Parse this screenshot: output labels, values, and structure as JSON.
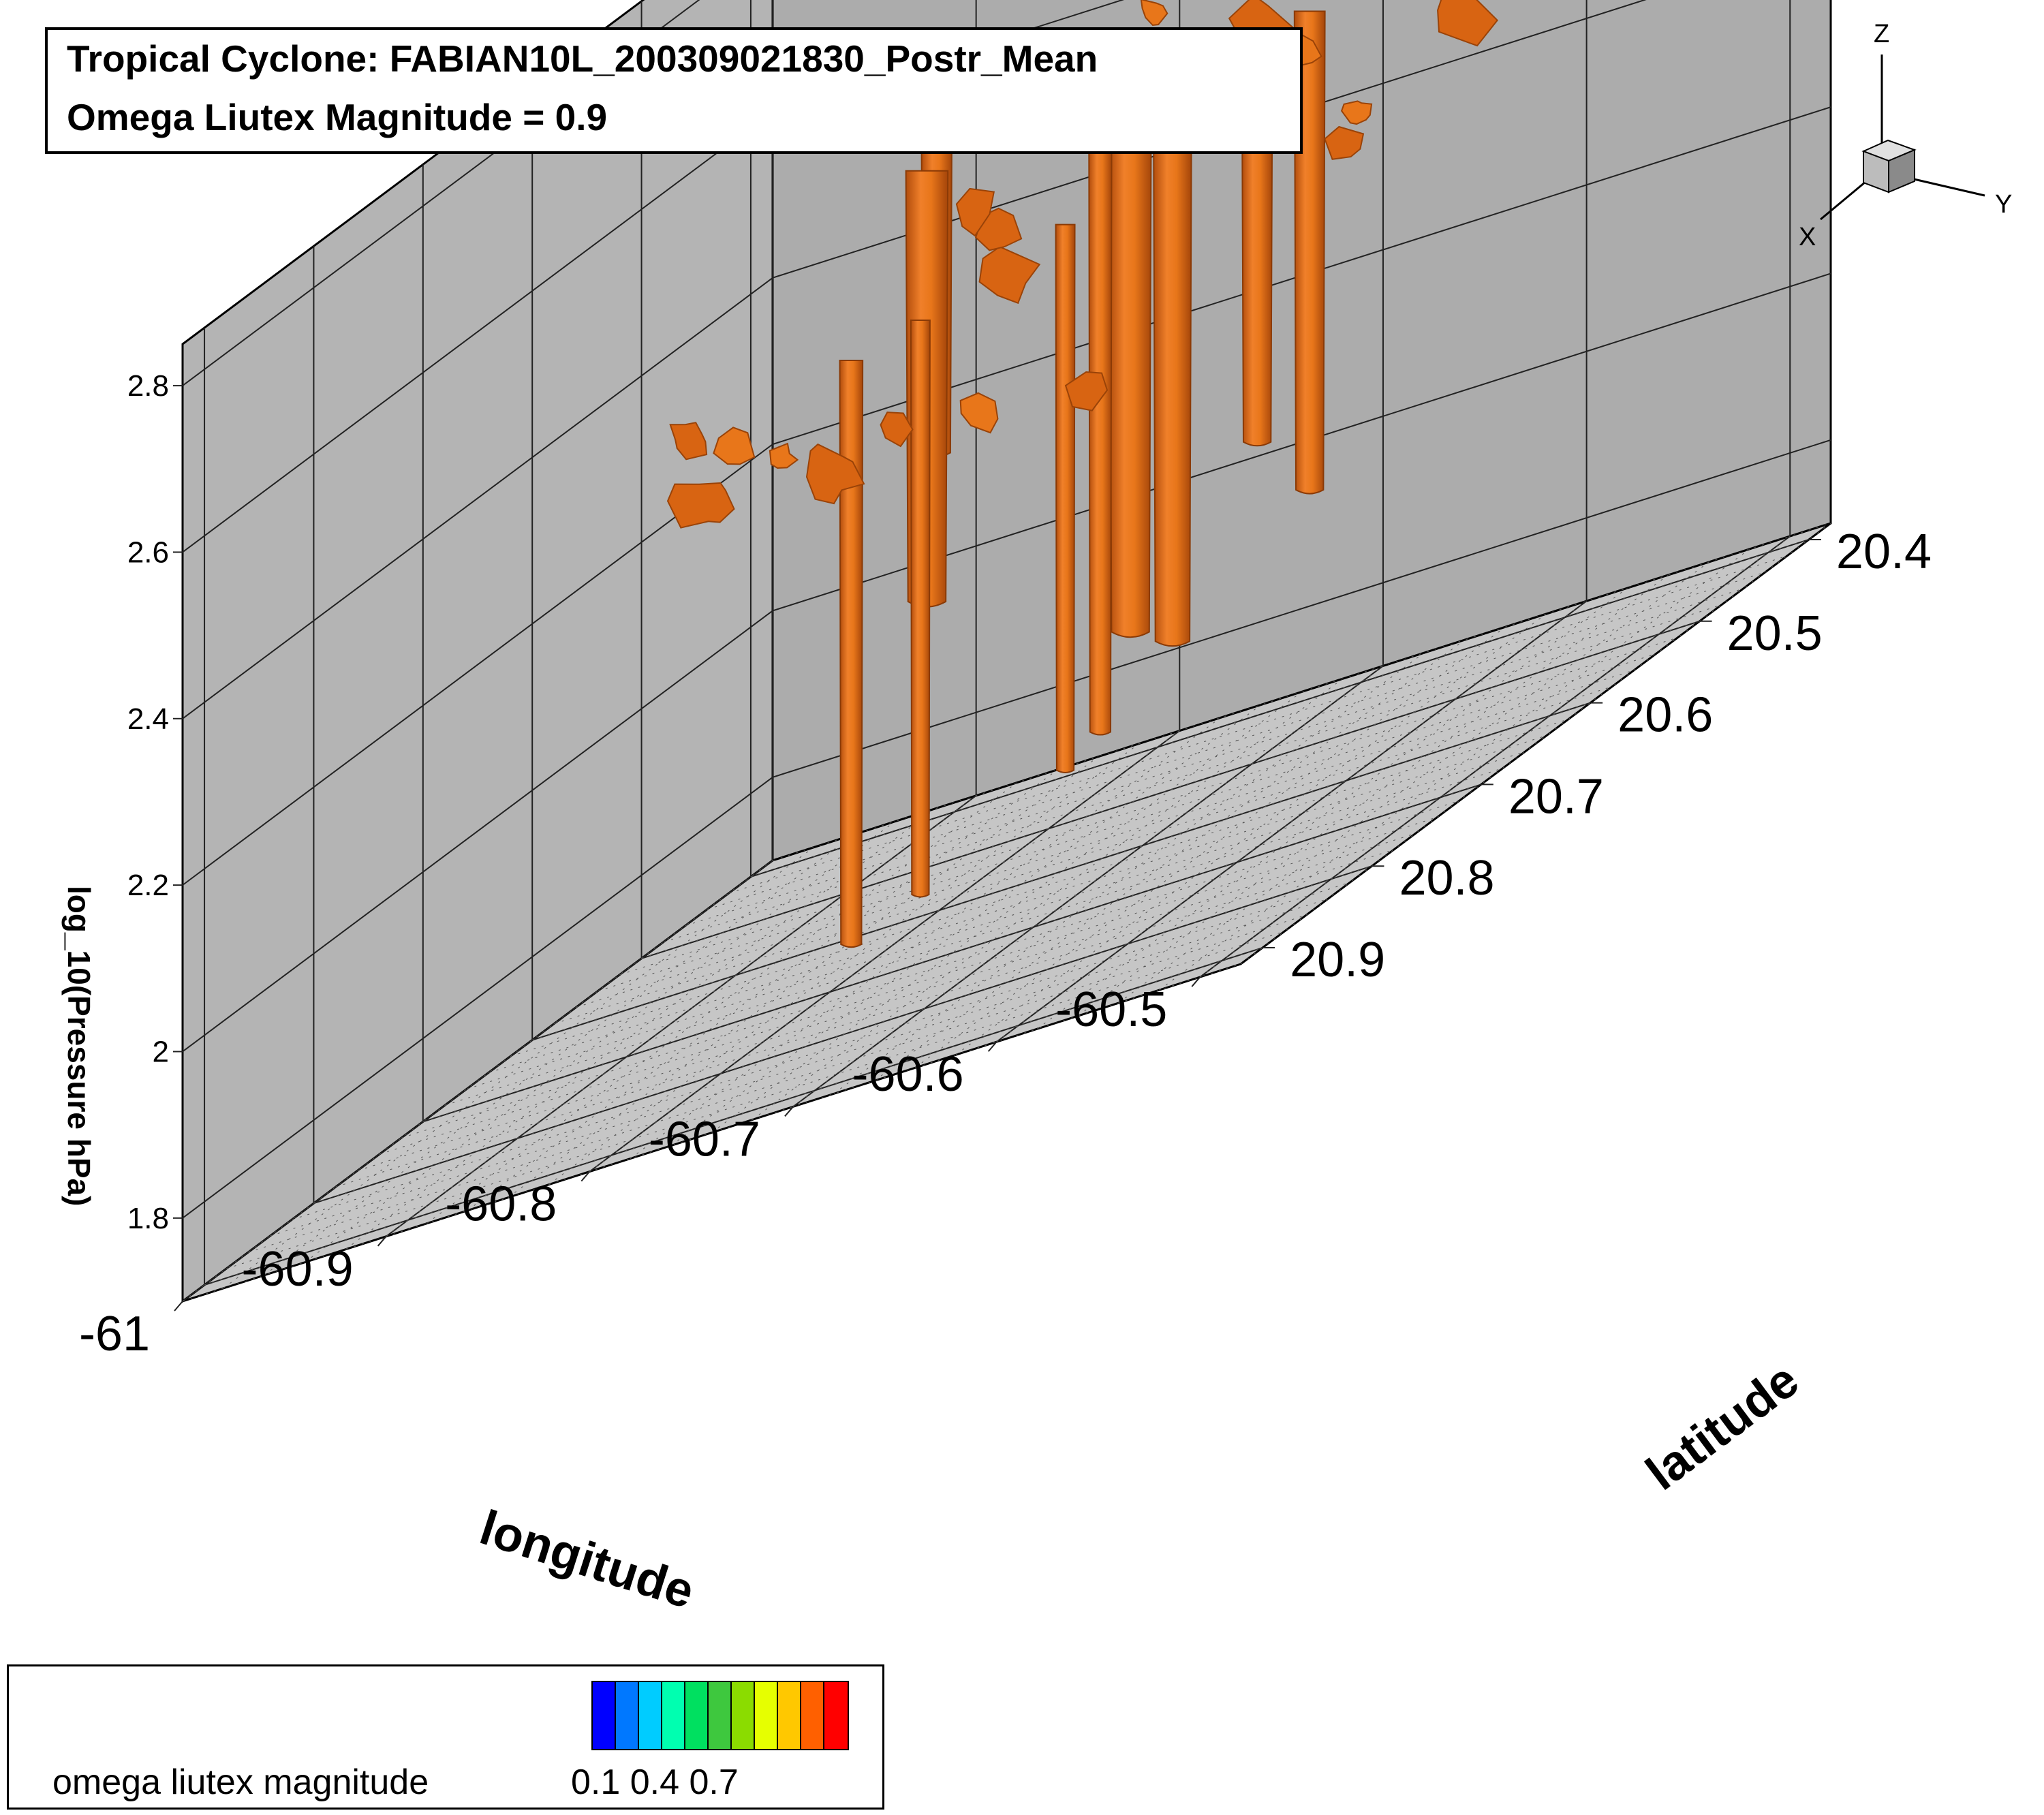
{
  "title": {
    "line1": "Tropical Cyclone: FABIAN10L_200309021830_Postr_Mean",
    "line2": "Omega Liutex Magnitude = 0.9"
  },
  "chart_data": {
    "type": "3d-isosurface",
    "iso_variable": "omega liutex magnitude",
    "iso_value": 0.9,
    "x_axis": {
      "label": "longitude",
      "ticks": [
        "-61",
        "-60.9",
        "-60.8",
        "-60.7",
        "-60.6",
        "-60.5"
      ],
      "range": [
        -61.0,
        -60.48
      ]
    },
    "y_axis": {
      "label": "latitude",
      "ticks": [
        "20.4",
        "20.5",
        "20.6",
        "20.7",
        "20.8",
        "20.9"
      ],
      "range": [
        20.38,
        20.92
      ]
    },
    "z_axis": {
      "label": "log_10(Pressure hPa)",
      "ticks": [
        "1.8",
        "2",
        "2.2",
        "2.4",
        "2.6",
        "2.8"
      ],
      "range": [
        1.7,
        2.85
      ]
    },
    "surface_color": "#e8761a",
    "grid": true,
    "orientation_triad": [
      "X",
      "Y",
      "Z"
    ],
    "legend": {
      "label": "omega liutex magnitude",
      "tick_labels": "0.1 0.4 0.7",
      "colors": [
        "#0000ff",
        "#0078ff",
        "#00ccff",
        "#00ffb0",
        "#00e060",
        "#3ec83e",
        "#8bdc00",
        "#e6ff00",
        "#ffc800",
        "#ff6000",
        "#ff0000"
      ]
    }
  }
}
